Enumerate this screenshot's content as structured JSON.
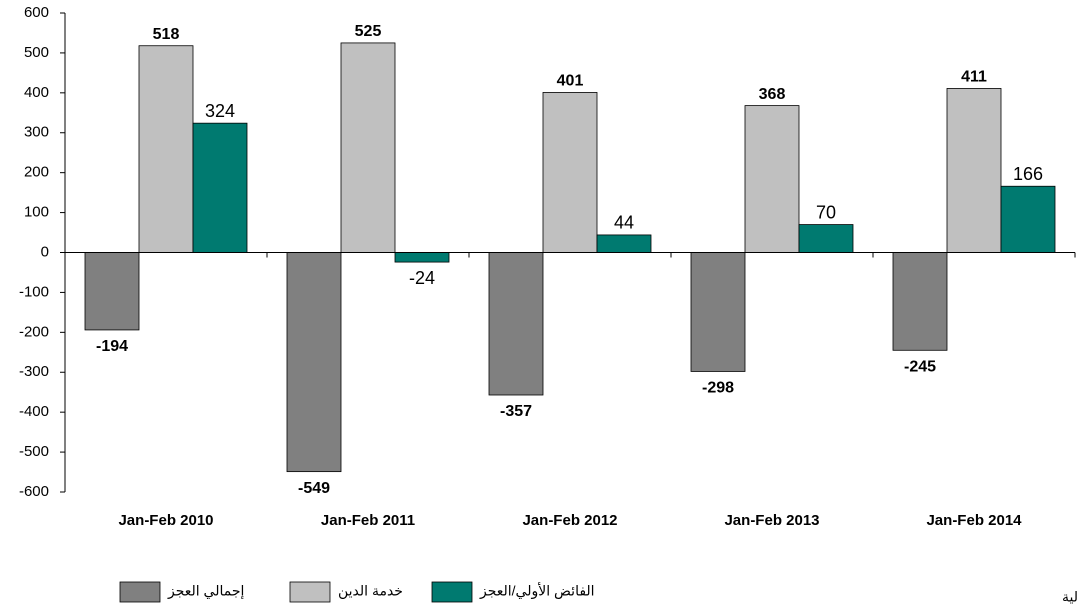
{
  "chart_data": {
    "type": "bar",
    "categories": [
      "Jan-Feb 2010",
      "Jan-Feb 2011",
      "Jan-Feb 2012",
      "Jan-Feb 2013",
      "Jan-Feb 2014"
    ],
    "series": [
      {
        "name": "إجمالي العجز",
        "color": "#808080",
        "values": [
          -194,
          -549,
          -357,
          -298,
          -245
        ]
      },
      {
        "name": "خدمة الدين",
        "color": "#c0c0c0",
        "values": [
          518,
          525,
          401,
          368,
          411
        ]
      },
      {
        "name": "الفائض الأولي/العجز",
        "color": "#007a70",
        "values": [
          324,
          -24,
          44,
          70,
          166
        ]
      }
    ],
    "ylim": [
      -600,
      600
    ],
    "yticks": [
      -600,
      -500,
      -400,
      -300,
      -200,
      -100,
      0,
      100,
      200,
      300,
      400,
      500,
      600
    ],
    "legend": "bottom",
    "source": "المصدر: وزارة المالية"
  }
}
